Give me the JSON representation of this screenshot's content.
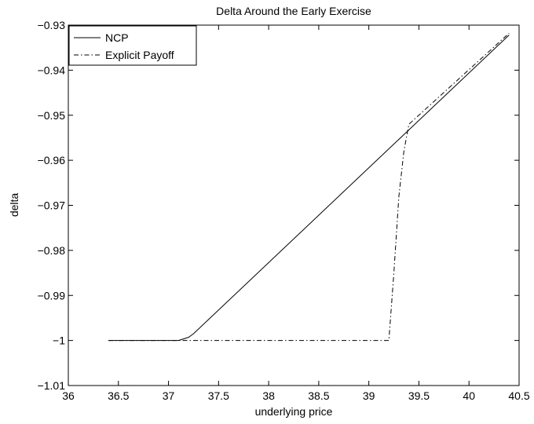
{
  "chart_data": {
    "type": "line",
    "title": "Delta Around the Early Exercise",
    "xlabel": "underlying price",
    "ylabel": "delta",
    "xlim": [
      36,
      40.5
    ],
    "ylim": [
      -1.01,
      -0.93
    ],
    "xticks": [
      36,
      36.5,
      37,
      37.5,
      38,
      38.5,
      39,
      39.5,
      40,
      40.5
    ],
    "xtick_labels": [
      "36",
      "36.5",
      "37",
      "37.5",
      "38",
      "38.5",
      "39",
      "39.5",
      "40",
      "40.5"
    ],
    "yticks": [
      -1.01,
      -1,
      -0.99,
      -0.98,
      -0.97,
      -0.96,
      -0.95,
      -0.94,
      -0.93
    ],
    "ytick_labels": [
      "−1.01",
      "−1",
      "−0.99",
      "−0.98",
      "−0.97",
      "−0.96",
      "−0.95",
      "−0.94",
      "−0.93"
    ],
    "grid": false,
    "legend_position": "top-left",
    "series": [
      {
        "name": "NCP",
        "style": "solid",
        "color": "#000000",
        "x": [
          36.4,
          37.1,
          37.2,
          37.25,
          40.4
        ],
        "y": [
          -1.0,
          -1.0,
          -0.9993,
          -0.9985,
          -0.9322
        ]
      },
      {
        "name": "Explicit Payoff",
        "style": "dashdot",
        "color": "#000000",
        "x": [
          36.4,
          39.2,
          39.25,
          39.3,
          39.35,
          39.4,
          40.4
        ],
        "y": [
          -1.0,
          -1.0,
          -0.985,
          -0.968,
          -0.958,
          -0.952,
          -0.9318
        ]
      }
    ]
  }
}
